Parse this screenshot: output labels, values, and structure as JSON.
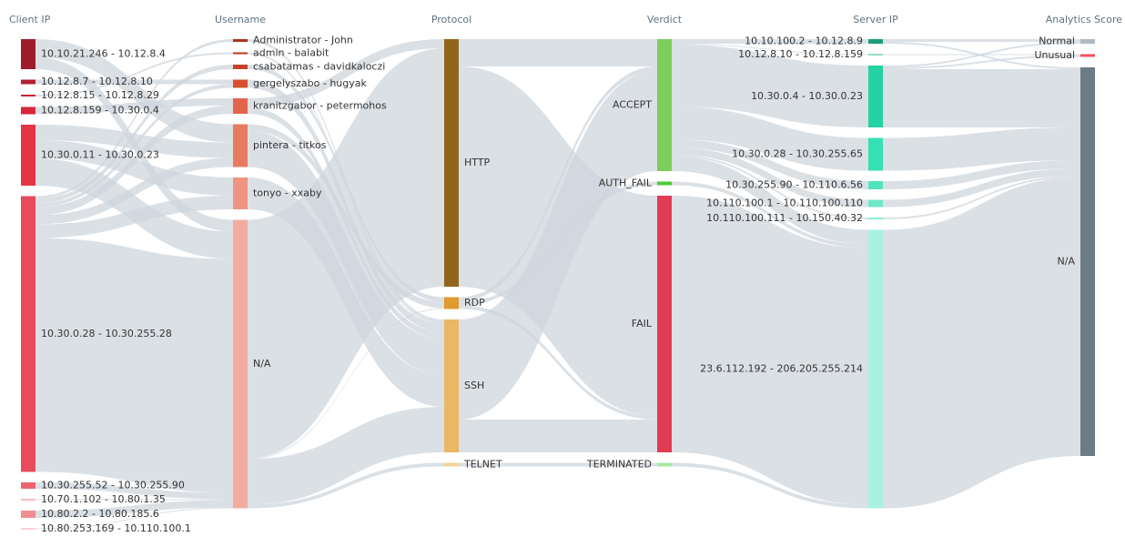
{
  "chart_data": {
    "type": "sankey",
    "columns": [
      {
        "title": "Client IP",
        "nodes": [
          {
            "name": "10.10.21.246 - 10.12.8.4",
            "color": "#9e1b2e",
            "value": 33
          },
          {
            "name": "10.12.8.7 - 10.12.8.10",
            "color": "#b0202f",
            "value": 5
          },
          {
            "name": "10.12.8.15 - 10.12.8.29",
            "color": "#c8222f",
            "value": 2
          },
          {
            "name": "10.12.8.159 - 10.30.0.4",
            "color": "#d8263a",
            "value": 8
          },
          {
            "name": "10.30.0.11 - 10.30.0.23",
            "color": "#e63447",
            "value": 67
          },
          {
            "name": "10.30.0.28 - 10.30.255.28",
            "color": "#e84c5c",
            "value": 303
          },
          {
            "name": "10.30.255.52 - 10.30.255.90",
            "color": "#ec6472",
            "value": 7
          },
          {
            "name": "10.70.1.102 - 10.80.1.35",
            "color": "#f07a84",
            "value": 1
          },
          {
            "name": "10.80.2.2 - 10.80.185.6",
            "color": "#f08c93",
            "value": 8
          },
          {
            "name": "10.80.253.169 - 10.110.100.1",
            "color": "#f4a5aa",
            "value": 1
          }
        ]
      },
      {
        "title": "Username",
        "nodes": [
          {
            "name": "Administrator - John",
            "color": "#a8321e",
            "value": 3
          },
          {
            "name": "admin - balabit",
            "color": "#b83a22",
            "value": 2
          },
          {
            "name": "csabatamas - davidkaloczi",
            "color": "#c84228",
            "value": 5
          },
          {
            "name": "gergelyszabo - hugyak",
            "color": "#d65030",
            "value": 9
          },
          {
            "name": "kranitzgabor - petermohos",
            "color": "#e2644a",
            "value": 17
          },
          {
            "name": "pintera - titkos",
            "color": "#e97a62",
            "value": 47
          },
          {
            "name": "tonyo - xxaby",
            "color": "#ee9480",
            "value": 35
          },
          {
            "name": "N/A",
            "color": "#f2ada0",
            "value": 317
          }
        ]
      },
      {
        "title": "Protocol",
        "nodes": [
          {
            "name": "HTTP",
            "color": "#93651c",
            "value": 272
          },
          {
            "name": "RDP",
            "color": "#e09a2e",
            "value": 13
          },
          {
            "name": "SSH",
            "color": "#eab764",
            "value": 146
          },
          {
            "name": "TELNET",
            "color": "#f3d49a",
            "value": 4
          }
        ]
      },
      {
        "title": "Verdict",
        "nodes": [
          {
            "name": "ACCEPT",
            "color": "#7dce5a",
            "value": 145
          },
          {
            "name": "AUTH_FAIL",
            "color": "#4cc93a",
            "value": 4
          },
          {
            "name": "FAIL",
            "color": "#e03c52",
            "value": 282
          },
          {
            "name": "TERMINATED",
            "color": "#a8e8a0",
            "value": 4
          }
        ]
      },
      {
        "title": "Server IP",
        "nodes": [
          {
            "name": "10.10.100.2 - 10.12.8.9",
            "color": "#1b9e78",
            "value": 5
          },
          {
            "name": "10.12.8.10 - 10.12.8.159",
            "color": "#27b88a",
            "value": 1
          },
          {
            "name": "10.30.0.4 - 10.30.0.23",
            "color": "#24d2a4",
            "value": 68
          },
          {
            "name": "10.30.0.28 - 10.30.255.65",
            "color": "#34e0b4",
            "value": 36
          },
          {
            "name": "10.30.255.90 - 10.110.6.56",
            "color": "#52e4bf",
            "value": 9
          },
          {
            "name": "10.110.100.1 - 10.110.100.110",
            "color": "#6ee8c8",
            "value": 8
          },
          {
            "name": "10.110.100.111 - 10.150.40.32",
            "color": "#8cecd3",
            "value": 2
          },
          {
            "name": "23.6.112.192 - 206.205.255.214",
            "color": "#a8f2e0",
            "value": 306
          }
        ]
      },
      {
        "title": "Analytics Score",
        "nodes": [
          {
            "name": "Normal",
            "color": "#b0b8c0",
            "value": 5
          },
          {
            "name": "Unusual",
            "color": "#f05060",
            "value": 3
          },
          {
            "name": "N/A",
            "color": "#6c7c86",
            "value": 427
          }
        ]
      }
    ],
    "flows": [
      [
        {
          "source": 0,
          "target": 5,
          "value": 20
        },
        {
          "source": 0,
          "target": 7,
          "value": 13
        },
        {
          "source": 1,
          "target": 3,
          "value": 5
        },
        {
          "source": 2,
          "target": 1,
          "value": 2
        },
        {
          "source": 3,
          "target": 4,
          "value": 8
        },
        {
          "source": 4,
          "target": 5,
          "value": 17
        },
        {
          "source": 4,
          "target": 6,
          "value": 20
        },
        {
          "source": 4,
          "target": 7,
          "value": 30
        },
        {
          "source": 5,
          "target": 0,
          "value": 3
        },
        {
          "source": 5,
          "target": 2,
          "value": 5
        },
        {
          "source": 5,
          "target": 3,
          "value": 4
        },
        {
          "source": 5,
          "target": 4,
          "value": 9
        },
        {
          "source": 5,
          "target": 5,
          "value": 10
        },
        {
          "source": 5,
          "target": 6,
          "value": 15
        },
        {
          "source": 5,
          "target": 7,
          "value": 257
        },
        {
          "source": 6,
          "target": 7,
          "value": 7
        },
        {
          "source": 7,
          "target": 7,
          "value": 1
        },
        {
          "source": 8,
          "target": 7,
          "value": 8
        },
        {
          "source": 9,
          "target": 7,
          "value": 1
        }
      ],
      [
        {
          "source": 0,
          "target": 2,
          "value": 3
        },
        {
          "source": 1,
          "target": 2,
          "value": 2
        },
        {
          "source": 2,
          "target": 1,
          "value": 5
        },
        {
          "source": 3,
          "target": 2,
          "value": 9
        },
        {
          "source": 4,
          "target": 0,
          "value": 10
        },
        {
          "source": 4,
          "target": 2,
          "value": 7
        },
        {
          "source": 5,
          "target": 1,
          "value": 7
        },
        {
          "source": 5,
          "target": 2,
          "value": 40
        },
        {
          "source": 6,
          "target": 2,
          "value": 35
        },
        {
          "source": 7,
          "target": 0,
          "value": 262
        },
        {
          "source": 7,
          "target": 1,
          "value": 1
        },
        {
          "source": 7,
          "target": 2,
          "value": 50
        },
        {
          "source": 7,
          "target": 3,
          "value": 4
        }
      ],
      [
        {
          "source": 0,
          "target": 0,
          "value": 30
        },
        {
          "source": 0,
          "target": 2,
          "value": 242
        },
        {
          "source": 1,
          "target": 0,
          "value": 5
        },
        {
          "source": 1,
          "target": 1,
          "value": 4
        },
        {
          "source": 1,
          "target": 2,
          "value": 4
        },
        {
          "source": 2,
          "target": 0,
          "value": 110
        },
        {
          "source": 2,
          "target": 2,
          "value": 36
        },
        {
          "source": 3,
          "target": 3,
          "value": 4
        }
      ],
      [
        {
          "source": 0,
          "target": 0,
          "value": 5
        },
        {
          "source": 0,
          "target": 1,
          "value": 1
        },
        {
          "source": 0,
          "target": 2,
          "value": 68
        },
        {
          "source": 0,
          "target": 3,
          "value": 36
        },
        {
          "source": 0,
          "target": 4,
          "value": 9
        },
        {
          "source": 0,
          "target": 5,
          "value": 8
        },
        {
          "source": 0,
          "target": 6,
          "value": 2
        },
        {
          "source": 0,
          "target": 7,
          "value": 16
        },
        {
          "source": 1,
          "target": 7,
          "value": 4
        },
        {
          "source": 2,
          "target": 7,
          "value": 282
        },
        {
          "source": 3,
          "target": 7,
          "value": 4
        }
      ],
      [
        {
          "source": 0,
          "target": 0,
          "value": 3
        },
        {
          "source": 0,
          "target": 2,
          "value": 2
        },
        {
          "source": 1,
          "target": 1,
          "value": 1
        },
        {
          "source": 2,
          "target": 0,
          "value": 2
        },
        {
          "source": 2,
          "target": 1,
          "value": 2
        },
        {
          "source": 2,
          "target": 2,
          "value": 64
        },
        {
          "source": 3,
          "target": 2,
          "value": 36
        },
        {
          "source": 4,
          "target": 2,
          "value": 9
        },
        {
          "source": 5,
          "target": 2,
          "value": 8
        },
        {
          "source": 6,
          "target": 2,
          "value": 2
        },
        {
          "source": 7,
          "target": 2,
          "value": 306
        }
      ]
    ]
  }
}
